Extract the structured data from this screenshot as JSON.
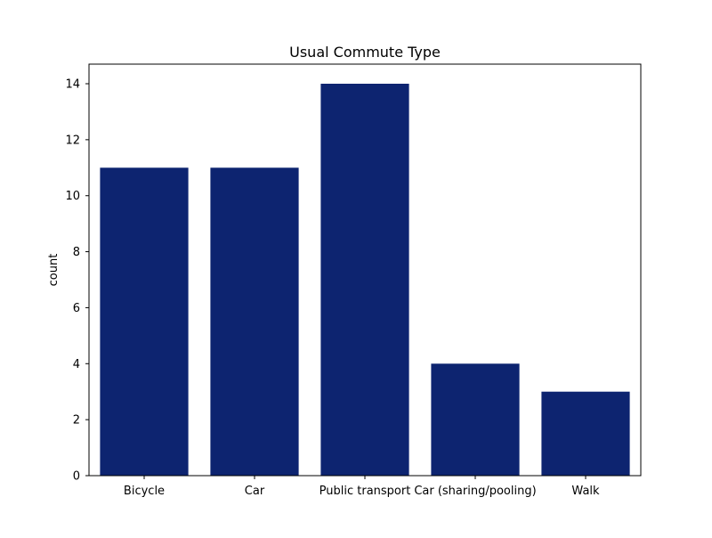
{
  "chart_data": {
    "type": "bar",
    "title": "Usual Commute Type",
    "xlabel": "",
    "ylabel": "count",
    "categories": [
      "Bicycle",
      "Car",
      "Public transport",
      "Car (sharing/pooling)",
      "Walk"
    ],
    "values": [
      11,
      11,
      14,
      4,
      3
    ],
    "ylim": [
      0,
      14.7
    ],
    "yticks": [
      0,
      2,
      4,
      6,
      8,
      10,
      12,
      14
    ],
    "bar_color": "#0d2470",
    "grid": false,
    "legend": "none"
  }
}
